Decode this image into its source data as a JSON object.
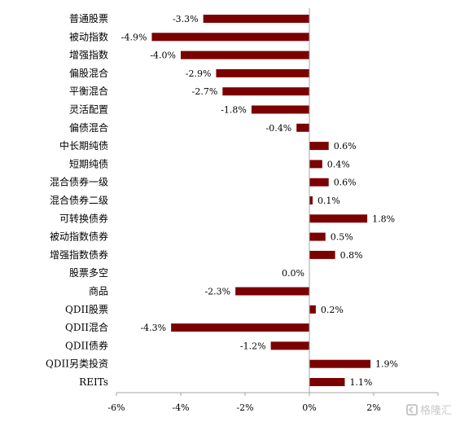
{
  "chart_data": {
    "type": "bar",
    "orientation": "horizontal",
    "categories": [
      "普通股票",
      "被动指数",
      "增强指数",
      "偏股混合",
      "平衡混合",
      "灵活配置",
      "偏债混合",
      "中长期纯债",
      "短期纯债",
      "混合债券一级",
      "混合债券二级",
      "可转换债券",
      "被动指数债券",
      "增强指数债券",
      "股票多空",
      "商品",
      "QDII股票",
      "QDII混合",
      "QDII债券",
      "QDII另类投资",
      "REITs"
    ],
    "values": [
      -3.3,
      -4.9,
      -4.0,
      -2.9,
      -2.7,
      -1.8,
      -0.4,
      0.6,
      0.4,
      0.6,
      0.1,
      1.8,
      0.5,
      0.8,
      0.0,
      -2.3,
      0.2,
      -4.3,
      -1.2,
      1.9,
      1.1
    ],
    "value_labels": [
      "-3.3%",
      "-4.9%",
      "-4.0%",
      "-2.9%",
      "-2.7%",
      "-1.8%",
      "-0.4%",
      "0.6%",
      "0.4%",
      "0.6%",
      "0.1%",
      "1.8%",
      "0.5%",
      "0.8%",
      "0.0%",
      "-2.3%",
      "0.2%",
      "-4.3%",
      "-1.2%",
      "1.9%",
      "1.1%"
    ],
    "xlim": [
      -6,
      4
    ],
    "xticks": [
      -6,
      -4,
      -2,
      0,
      2
    ],
    "xtick_labels": [
      "-6%",
      "-4%",
      "-2%",
      "0%",
      "2%"
    ],
    "bar_color": "#7b0000",
    "grid": false,
    "legend": "none"
  },
  "watermark": "格隆汇"
}
